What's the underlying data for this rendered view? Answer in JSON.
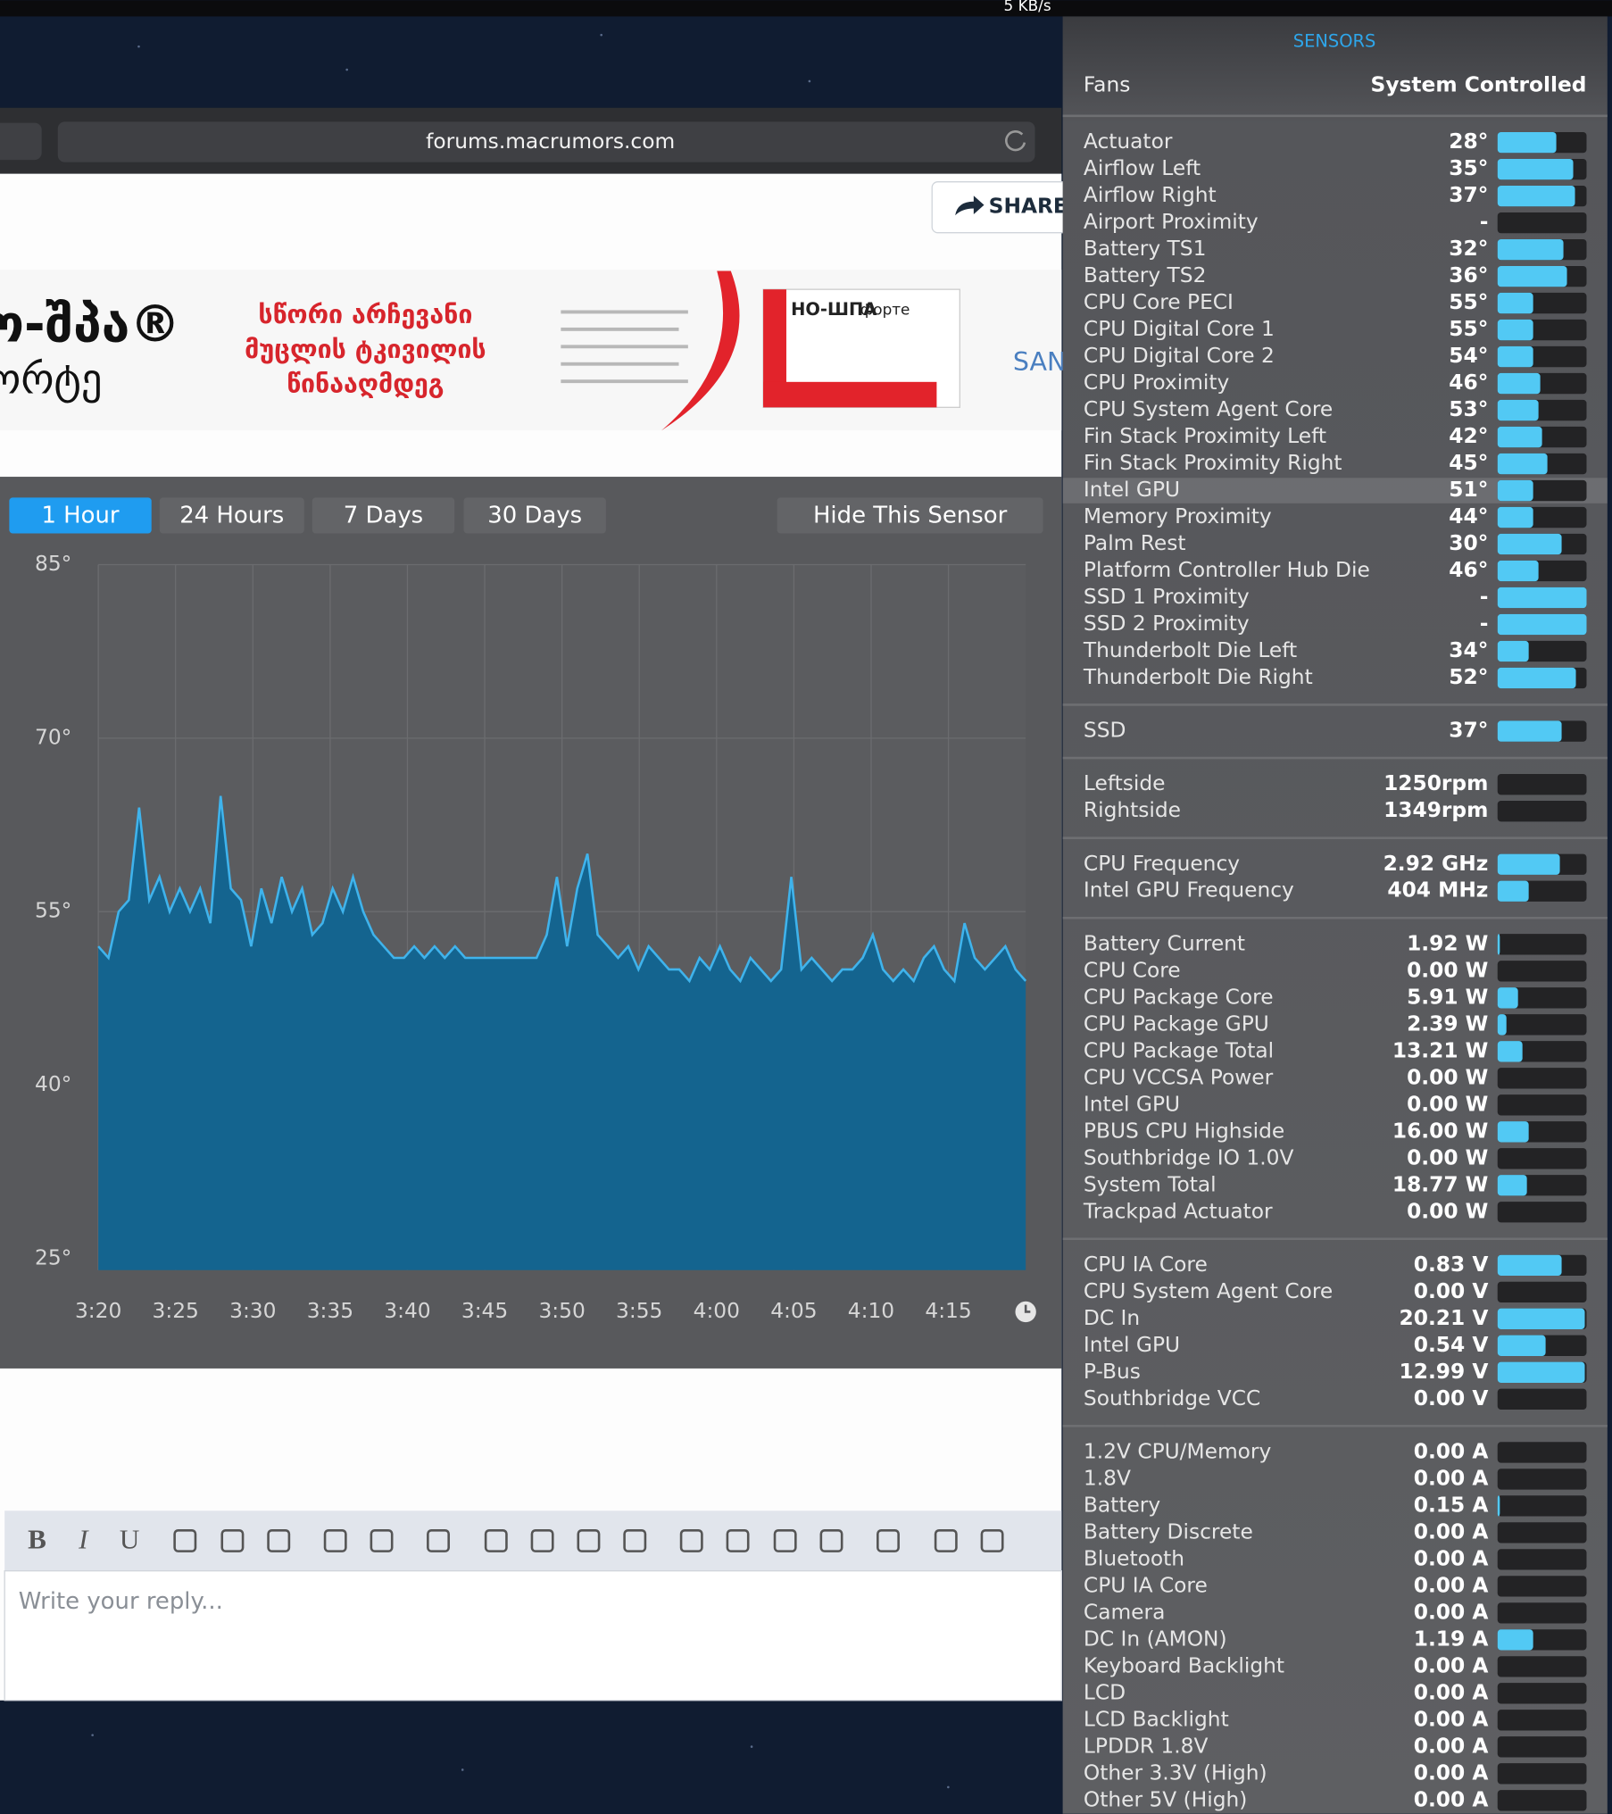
{
  "menubar": {
    "network": "5 KB/s"
  },
  "browser": {
    "url": "forums.macrumors.com",
    "share": "SHARE",
    "ad": {
      "brand": "ნო-შპა®",
      "brand_sub": "ფორტე",
      "lines": [
        "სწორი არჩევანი",
        "მუცლის ტკივილის",
        "წინააღმდეგ"
      ],
      "box_title": "НО-ШПА",
      "box_sub": "форте",
      "maker": "SANOFI"
    },
    "editor": {
      "buttons": [
        "B",
        "I",
        "U"
      ],
      "placeholder": "Write your reply..."
    }
  },
  "sensor_window": {
    "tabs": [
      "1 Hour",
      "24 Hours",
      "7 Days",
      "30 Days"
    ],
    "active_tab": 0,
    "hide": "Hide This Sensor",
    "chart": {
      "type": "line",
      "color": "#3fb3ec",
      "area_color": "#14648f",
      "grid": true,
      "xlim": [
        0,
        60
      ],
      "xticks": [
        {
          "value": 0,
          "label": "3:20"
        },
        {
          "value": 5,
          "label": "3:25"
        },
        {
          "value": 10,
          "label": "3:30"
        },
        {
          "value": 15,
          "label": "3:35"
        },
        {
          "value": 20,
          "label": "3:40"
        },
        {
          "value": 25,
          "label": "3:45"
        },
        {
          "value": 30,
          "label": "3:50"
        },
        {
          "value": 35,
          "label": "3:55"
        },
        {
          "value": 40,
          "label": "4:00"
        },
        {
          "value": 45,
          "label": "4:05"
        },
        {
          "value": 50,
          "label": "4:10"
        },
        {
          "value": 55,
          "label": "4:15"
        }
      ],
      "ylim": [
        24,
        85
      ],
      "yticks": [
        {
          "value": 85,
          "label": "85°"
        },
        {
          "value": 70,
          "label": "70°"
        },
        {
          "value": 55,
          "label": "55°"
        },
        {
          "value": 40,
          "label": "40°"
        },
        {
          "value": 25,
          "label": "25°"
        }
      ],
      "values": [
        52,
        51,
        55,
        56,
        64,
        56,
        58,
        55,
        57,
        55,
        57,
        54,
        65,
        57,
        56,
        52,
        57,
        54,
        58,
        55,
        57,
        53,
        54,
        57,
        55,
        58,
        55,
        53,
        52,
        51,
        51,
        52,
        51,
        52,
        51,
        52,
        51,
        51,
        51,
        51,
        51,
        51,
        51,
        51,
        53,
        58,
        52,
        57,
        60,
        53,
        52,
        51,
        52,
        50,
        52,
        51,
        50,
        50,
        49,
        51,
        50,
        52,
        50,
        49,
        51,
        50,
        49,
        50,
        58,
        50,
        51,
        50,
        49,
        50,
        50,
        51,
        53,
        50,
        49,
        50,
        49,
        51,
        52,
        50,
        49,
        54,
        51,
        50,
        51,
        52,
        50,
        49
      ]
    }
  },
  "sensors": {
    "title": "SENSORS",
    "fans_label": "Fans",
    "fans_mode": "System Controlled",
    "groups": [
      [
        {
          "name": "Actuator",
          "value": "28°",
          "level": 0.66
        },
        {
          "name": "Airflow Left",
          "value": "35°",
          "level": 0.85
        },
        {
          "name": "Airflow Right",
          "value": "37°",
          "level": 0.87
        },
        {
          "name": "Airport Proximity",
          "value": "-",
          "level": 0
        },
        {
          "name": "Battery TS1",
          "value": "32°",
          "level": 0.74
        },
        {
          "name": "Battery TS2",
          "value": "36°",
          "level": 0.78
        },
        {
          "name": "CPU Core PECI",
          "value": "55°",
          "level": 0.4
        },
        {
          "name": "CPU Digital Core 1",
          "value": "55°",
          "level": 0.4
        },
        {
          "name": "CPU Digital Core 2",
          "value": "54°",
          "level": 0.4
        },
        {
          "name": "CPU Proximity",
          "value": "46°",
          "level": 0.48
        },
        {
          "name": "CPU System Agent Core",
          "value": "53°",
          "level": 0.46
        },
        {
          "name": "Fin Stack Proximity Left",
          "value": "42°",
          "level": 0.5
        },
        {
          "name": "Fin Stack Proximity Right",
          "value": "45°",
          "level": 0.56
        },
        {
          "name": "Intel GPU",
          "value": "51°",
          "level": 0.4,
          "hover": true
        },
        {
          "name": "Memory Proximity",
          "value": "44°",
          "level": 0.4
        },
        {
          "name": "Palm Rest",
          "value": "30°",
          "level": 0.72
        },
        {
          "name": "Platform Controller Hub Die",
          "value": "46°",
          "level": 0.46
        },
        {
          "name": "SSD 1 Proximity",
          "value": "-",
          "level": 1
        },
        {
          "name": "SSD 2 Proximity",
          "value": "-",
          "level": 1
        },
        {
          "name": "Thunderbolt Die Left",
          "value": "34°",
          "level": 0.35
        },
        {
          "name": "Thunderbolt Die Right",
          "value": "52°",
          "level": 0.88
        }
      ],
      [
        {
          "name": "SSD",
          "value": "37°",
          "level": 0.72
        }
      ],
      [
        {
          "name": "Leftside",
          "value": "1250rpm",
          "level": 0
        },
        {
          "name": "Rightside",
          "value": "1349rpm",
          "level": 0
        }
      ],
      [
        {
          "name": "CPU Frequency",
          "value": "2.92 GHz",
          "level": 0.7
        },
        {
          "name": "Intel GPU Frequency",
          "value": "404 MHz",
          "level": 0.35
        }
      ],
      [
        {
          "name": "Battery Current",
          "value": "1.92 W",
          "level": 0.02
        },
        {
          "name": "CPU Core",
          "value": "0.00 W",
          "level": 0
        },
        {
          "name": "CPU Package Core",
          "value": "5.91 W",
          "level": 0.23
        },
        {
          "name": "CPU Package GPU",
          "value": "2.39 W",
          "level": 0.1
        },
        {
          "name": "CPU Package Total",
          "value": "13.21 W",
          "level": 0.28
        },
        {
          "name": "CPU VCCSA Power",
          "value": "0.00 W",
          "level": 0
        },
        {
          "name": "Intel GPU",
          "value": "0.00 W",
          "level": 0
        },
        {
          "name": "PBUS CPU Highside",
          "value": "16.00 W",
          "level": 0.35
        },
        {
          "name": "Southbridge IO 1.0V",
          "value": "0.00 W",
          "level": 0
        },
        {
          "name": "System Total",
          "value": "18.77 W",
          "level": 0.33
        },
        {
          "name": "Trackpad Actuator",
          "value": "0.00 W",
          "level": 0
        }
      ],
      [
        {
          "name": "CPU IA Core",
          "value": "0.83 V",
          "level": 0.72
        },
        {
          "name": "CPU System Agent Core",
          "value": "0.00 V",
          "level": 0
        },
        {
          "name": "DC In",
          "value": "20.21 V",
          "level": 0.98
        },
        {
          "name": "Intel GPU",
          "value": "0.54 V",
          "level": 0.54
        },
        {
          "name": "P-Bus",
          "value": "12.99 V",
          "level": 0.98
        },
        {
          "name": "Southbridge VCC",
          "value": "0.00 V",
          "level": 0
        }
      ],
      [
        {
          "name": "1.2V CPU/Memory",
          "value": "0.00 A",
          "level": 0
        },
        {
          "name": "1.8V",
          "value": "0.00 A",
          "level": 0
        },
        {
          "name": "Battery",
          "value": "0.15 A",
          "level": 0.02
        },
        {
          "name": "Battery Discrete",
          "value": "0.00 A",
          "level": 0
        },
        {
          "name": "Bluetooth",
          "value": "0.00 A",
          "level": 0
        },
        {
          "name": "CPU IA Core",
          "value": "0.00 A",
          "level": 0
        },
        {
          "name": "Camera",
          "value": "0.00 A",
          "level": 0
        },
        {
          "name": "DC In (AMON)",
          "value": "1.19 A",
          "level": 0.4
        },
        {
          "name": "Keyboard Backlight",
          "value": "0.00 A",
          "level": 0
        },
        {
          "name": "LCD",
          "value": "0.00 A",
          "level": 0
        },
        {
          "name": "LCD Backlight",
          "value": "0.00 A",
          "level": 0
        },
        {
          "name": "LPDDR 1.8V",
          "value": "0.00 A",
          "level": 0
        },
        {
          "name": "Other 3.3V (High)",
          "value": "0.00 A",
          "level": 0
        },
        {
          "name": "Other 5V (High)",
          "value": "0.00 A",
          "level": 0
        }
      ]
    ]
  }
}
